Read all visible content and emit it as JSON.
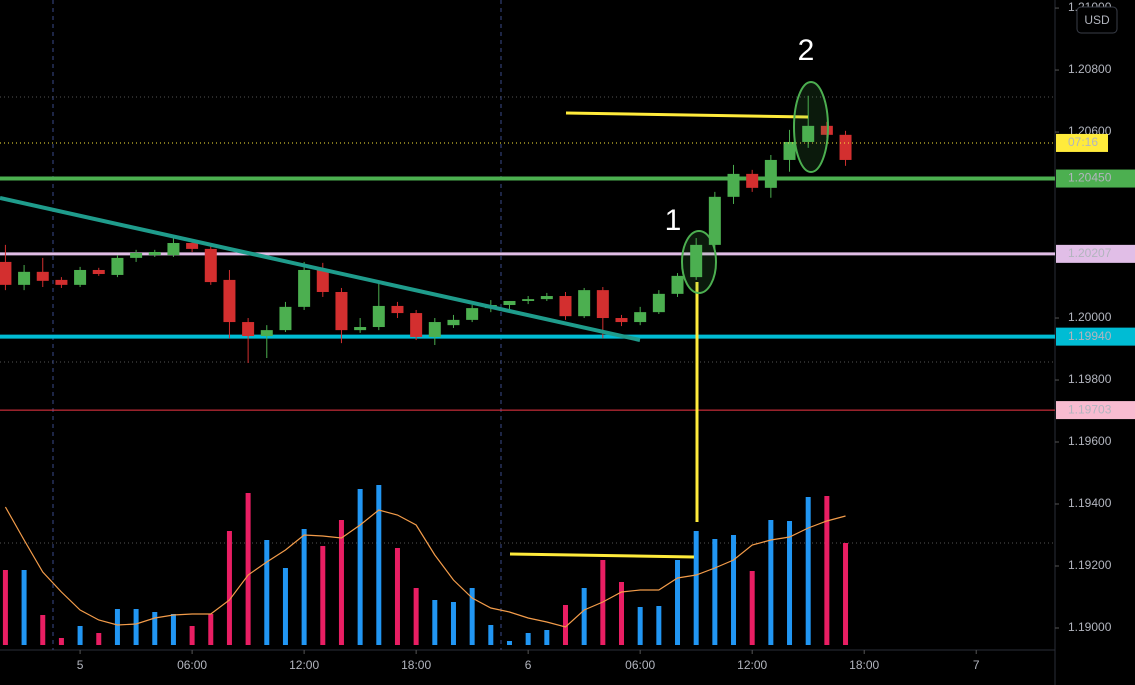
{
  "chart_data": {
    "type": "candlestick",
    "currency": "USD",
    "x": [
      -4,
      -3,
      -2,
      -1,
      0,
      1,
      2,
      3,
      4,
      5,
      6,
      7,
      8,
      9,
      10,
      11,
      12,
      13,
      14,
      15,
      16,
      17,
      18,
      19,
      20,
      21,
      22,
      23,
      24,
      25,
      26,
      27,
      28,
      29,
      30,
      31,
      32,
      33,
      34,
      35,
      36,
      37,
      38,
      39,
      40,
      41
    ],
    "open": [
      1.20181,
      1.20107,
      1.20149,
      1.20123,
      1.20107,
      1.20155,
      1.20139,
      1.20194,
      1.20203,
      1.20203,
      1.20242,
      1.20223,
      1.20123,
      1.19987,
      1.19942,
      1.19961,
      1.20036,
      1.20155,
      1.20084,
      1.19961,
      1.19971,
      1.20039,
      1.20016,
      1.19939,
      1.19977,
      1.19994,
      1.20032,
      1.20042,
      1.20055,
      1.20061,
      1.20071,
      1.20006,
      1.2009,
      1.2,
      1.19987,
      1.20019,
      1.20078,
      1.20132,
      1.20236,
      1.20391,
      1.20465,
      1.2042,
      1.2051,
      1.20568,
      1.2062,
      1.20591
    ],
    "high": [
      1.20236,
      1.20171,
      1.20194,
      1.20132,
      1.20165,
      1.20162,
      1.20203,
      1.2022,
      1.2022,
      1.20258,
      1.20252,
      1.20233,
      1.20155,
      1.2,
      1.19977,
      1.20052,
      1.20181,
      1.20178,
      1.20097,
      1.2,
      1.2011,
      1.20052,
      1.20026,
      1.2,
      1.2001,
      1.20042,
      1.20058,
      1.20055,
      1.20071,
      1.20081,
      1.20084,
      1.20097,
      1.201,
      1.2001,
      1.20036,
      1.2009,
      1.20145,
      1.20258,
      1.20407,
      1.20494,
      1.20478,
      1.20526,
      1.20607,
      1.20717,
      1.20633,
      1.20604
    ],
    "low": [
      1.2009,
      1.2009,
      1.201,
      1.20097,
      1.201,
      1.20136,
      1.20132,
      1.20181,
      1.20197,
      1.20197,
      1.20213,
      1.20107,
      1.19935,
      1.19855,
      1.19871,
      1.19955,
      1.20026,
      1.20068,
      1.19919,
      1.19952,
      1.19961,
      1.2,
      1.19929,
      1.19913,
      1.19968,
      1.19987,
      1.20019,
      1.20026,
      1.20045,
      1.20055,
      1.19994,
      1.2,
      1.19935,
      1.19974,
      1.19977,
      1.20013,
      1.20068,
      1.20123,
      1.2022,
      1.20368,
      1.20407,
      1.20388,
      1.20472,
      1.20549,
      1.20581,
      1.20491
    ],
    "close": [
      1.20107,
      1.20149,
      1.2012,
      1.20107,
      1.20155,
      1.20142,
      1.20194,
      1.2021,
      1.20213,
      1.20242,
      1.20223,
      1.20116,
      1.19987,
      1.19942,
      1.19961,
      1.20036,
      1.20155,
      1.20084,
      1.19961,
      1.19971,
      1.20039,
      1.20016,
      1.19939,
      1.19987,
      1.19994,
      1.20032,
      1.20042,
      1.20055,
      1.20061,
      1.20071,
      1.20006,
      1.2009,
      1.2,
      1.19987,
      1.20019,
      1.20078,
      1.20136,
      1.20236,
      1.20391,
      1.20465,
      1.2042,
      1.2051,
      1.20568,
      1.2062,
      1.20591,
      1.2051
    ],
    "up_color": "#4caf50",
    "down_color": "#d32f2f",
    "volume": {
      "values": [
        75,
        75,
        30,
        7,
        19,
        12,
        36,
        36,
        33,
        31,
        19,
        31,
        114,
        152,
        105,
        77,
        116,
        99,
        125,
        156,
        160,
        97,
        57,
        45,
        43,
        57,
        20,
        4,
        12,
        15,
        40,
        57,
        85,
        63,
        38,
        39,
        85,
        114,
        106,
        110,
        74,
        125,
        124,
        148,
        149,
        102
      ],
      "up_color": "#2196f3",
      "down_color": "#e91e63"
    },
    "volume_ma": {
      "values": [
        138,
        105,
        73,
        53,
        35,
        25,
        20,
        21,
        27,
        30,
        31,
        31,
        45,
        70,
        83,
        95,
        110,
        109,
        107,
        120,
        135,
        130,
        120,
        90,
        65,
        47,
        37,
        33,
        27,
        23,
        18,
        35,
        43,
        53,
        55,
        55,
        67,
        70,
        77,
        85,
        100,
        105,
        108,
        117,
        124,
        129
      ],
      "color": "#f39c4a"
    },
    "xlim": [
      -4.29,
      52.22
    ],
    "xticks": [
      {
        "value": 0,
        "label": "5"
      },
      {
        "value": 6,
        "label": "06:00"
      },
      {
        "value": 12,
        "label": "12:00"
      },
      {
        "value": 18,
        "label": "18:00"
      },
      {
        "value": 24,
        "label": "6"
      },
      {
        "value": 30,
        "label": "06:00"
      },
      {
        "value": 36,
        "label": "12:00"
      },
      {
        "value": 42,
        "label": "18:00"
      },
      {
        "value": 48,
        "label": "7"
      }
    ],
    "ylim": [
      1.18929,
      1.21026
    ],
    "yticks": [
      {
        "value": 1.21,
        "label": "1.21000"
      },
      {
        "value": 1.208,
        "label": "1.20800"
      },
      {
        "value": 1.206,
        "label": "1.20600"
      },
      {
        "value": 1.2,
        "label": "1.20000"
      },
      {
        "value": 1.198,
        "label": "1.19800"
      },
      {
        "value": 1.196,
        "label": "1.19600"
      },
      {
        "value": 1.194,
        "label": "1.19400"
      },
      {
        "value": 1.192,
        "label": "1.19200"
      },
      {
        "value": 1.19,
        "label": "1.19000"
      }
    ],
    "y2lim": [
      0,
      200
    ],
    "levels": [
      {
        "value": 1.2045,
        "label": "1.20450",
        "color": "#4caf50",
        "label_color": "#4caf50",
        "text_color": "#ffffff",
        "width": 4
      },
      {
        "value": 1.20207,
        "label": "1.20207",
        "color": "#e1bee7",
        "label_color": "#e1bee7",
        "text_color": "#000000",
        "width": 3
      },
      {
        "value": 1.1994,
        "label": "1.19940",
        "color": "#00bcd4",
        "label_color": "#00bcd4",
        "text_color": "#000000",
        "width": 4
      },
      {
        "value": 1.19703,
        "label": "1.19703",
        "color": "#f23645",
        "label_color": "#f8bbd0",
        "text_color": "#000000",
        "width": 1
      }
    ],
    "countdown": "07:16",
    "countdown_color": "#ffeb3b",
    "annotations": [
      "1",
      "2"
    ]
  }
}
